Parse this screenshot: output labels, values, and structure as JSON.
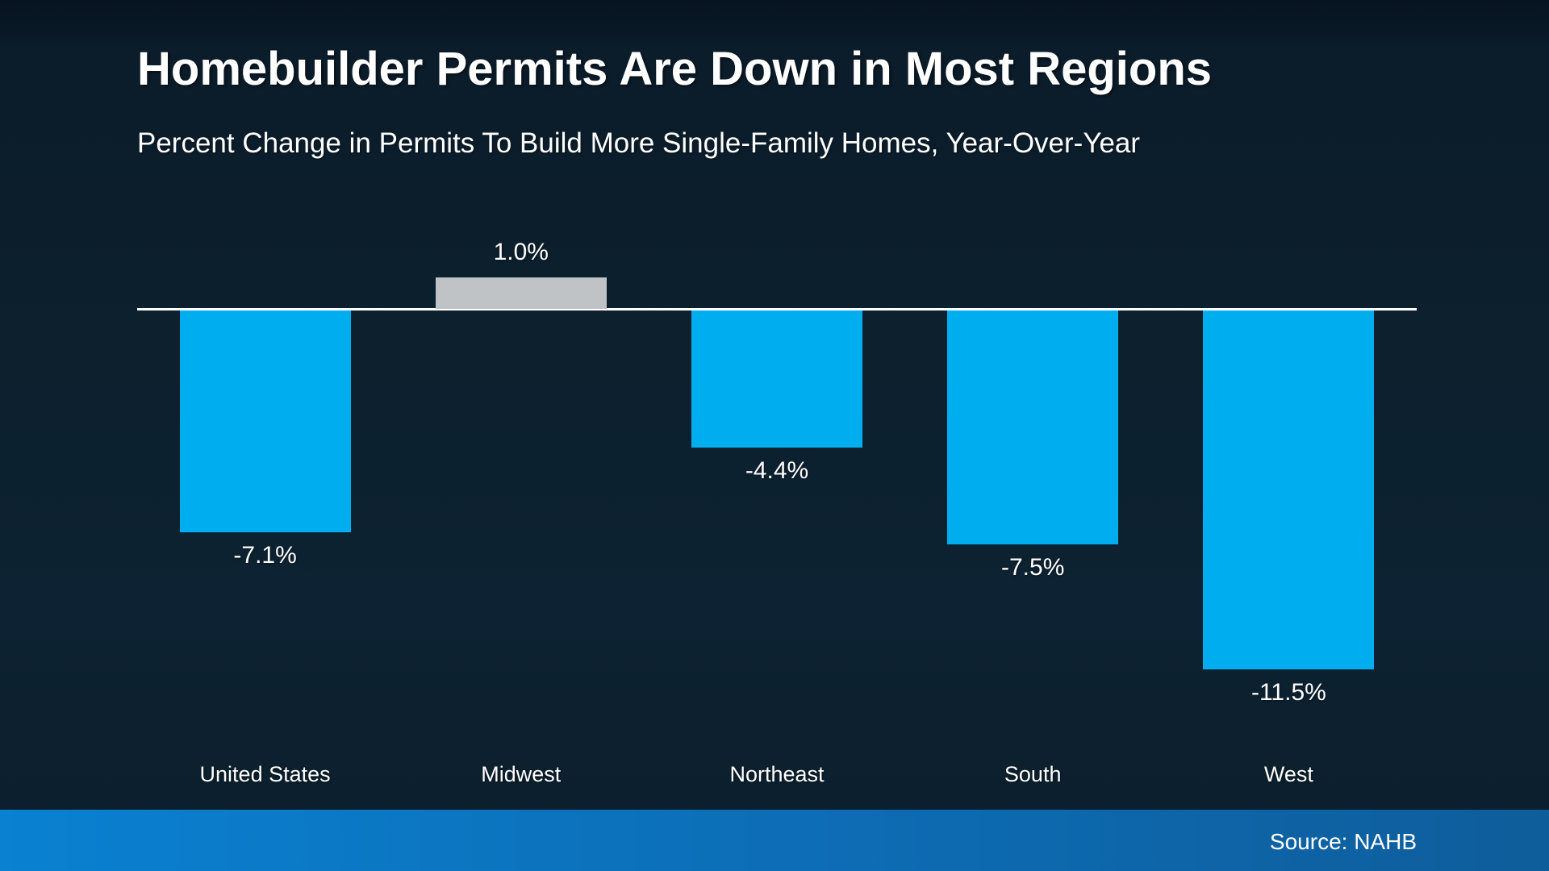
{
  "header": {
    "title": "Homebuilder Permits Are Down in Most Regions",
    "subtitle": "Percent Change in Permits To Build More Single-Family Homes, Year-Over-Year"
  },
  "chart_data": {
    "type": "bar",
    "title": "Homebuilder Permits Are Down in Most Regions",
    "subtitle": "Percent Change in Permits To Build More Single-Family Homes, Year-Over-Year",
    "categories": [
      "United States",
      "Midwest",
      "Northeast",
      "South",
      "West"
    ],
    "values": [
      -7.1,
      1.0,
      -4.4,
      -7.5,
      -11.5
    ],
    "value_labels": [
      "-7.1%",
      "1.0%",
      "-4.4%",
      "-7.5%",
      "-11.5%"
    ],
    "unit": "percent",
    "baseline": 0,
    "ylim": [
      -12.5,
      2.5
    ],
    "grid": false,
    "legend": "none",
    "orientation": "vertical",
    "colors": {
      "negative_bar": "#00aeef",
      "positive_bar": "#bfc3c5",
      "axis_line": "#ffffff",
      "label_text": "#ffffff"
    }
  },
  "footer": {
    "source": "Source: NAHB"
  },
  "theme": {
    "background_top": "#071320",
    "background_bottom": "#0b1e2c",
    "footer_gradient_left": "#0a81d1",
    "footer_gradient_right": "#0e5d9b",
    "text": "#ffffff"
  }
}
